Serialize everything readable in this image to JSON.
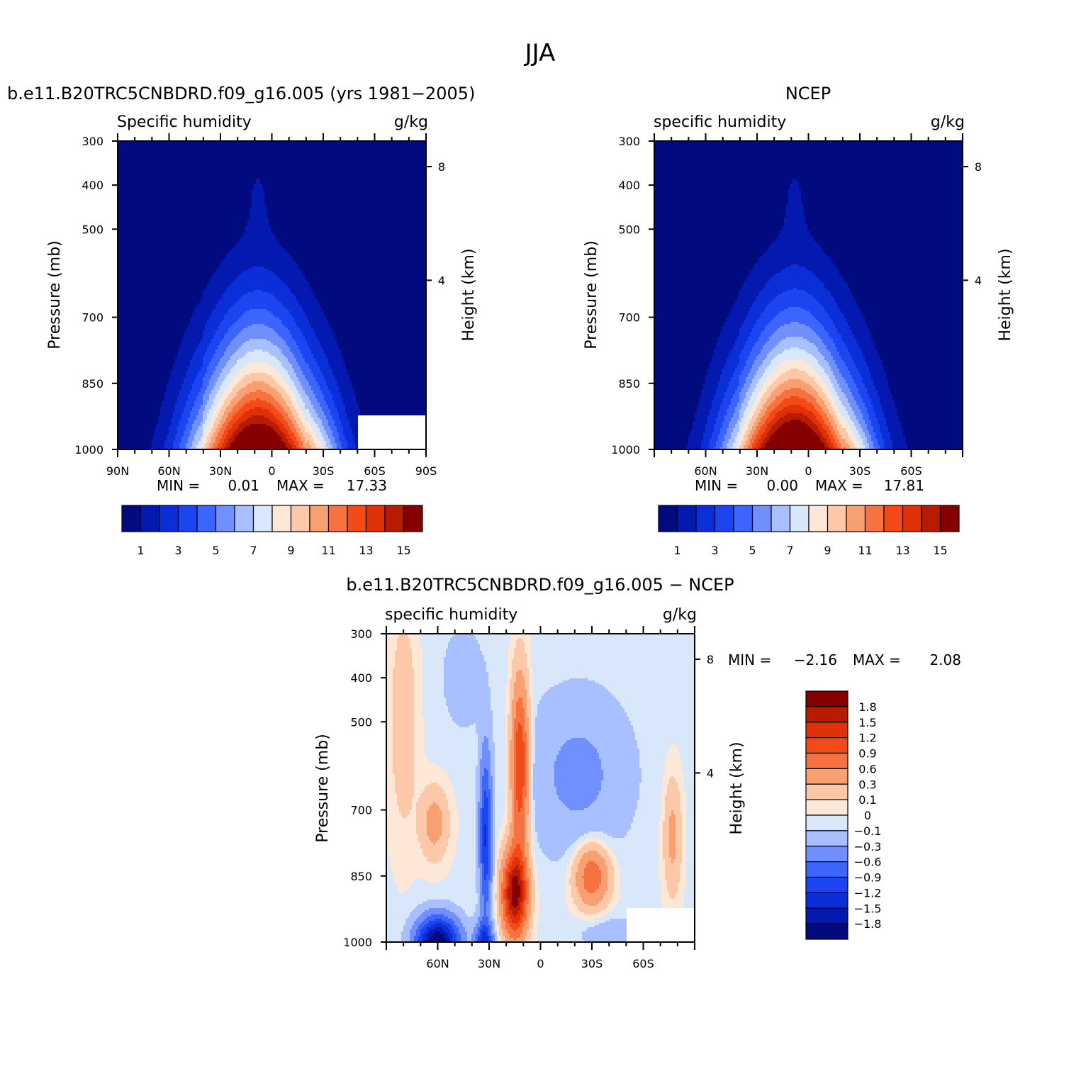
{
  "figure_title": "JJA",
  "panels": [
    {
      "id": "model",
      "title": "b.e11.B20TRC5CNBDRD.f09_g16.005 (yrs 1981-2005)",
      "variable_label": "Specific humidity",
      "units_label": "g/kg",
      "ylabel": "Pressure (mb)",
      "y2label": "Height (km)",
      "stats": {
        "min_label": "MIN =",
        "min": "0.01",
        "max_label": "MAX =",
        "max": "17.33"
      }
    },
    {
      "id": "obs",
      "title": "NCEP",
      "variable_label": "specific humidity",
      "units_label": "g/kg",
      "ylabel": "Pressure (mb)",
      "y2label": "Height (km)",
      "stats": {
        "min_label": "MIN =",
        "min": "0.00",
        "max_label": "MAX =",
        "max": "17.81"
      }
    },
    {
      "id": "diff",
      "title": "b.e11.B20TRC5CNBDRD.f09_g16.005 - NCEP",
      "variable_label": "specific humidity",
      "units_label": "g/kg",
      "ylabel": "Pressure (mb)",
      "y2label": "Height (km)",
      "stats": {
        "min_label": "MIN =",
        "min": "-2.16",
        "max_label": "MAX =",
        "max": "2.08"
      }
    }
  ],
  "chart_data": [
    {
      "type": "heatmap",
      "title": "b.e11.B20TRC5CNBDRD.f09_g16.005 (yrs 1981-2005)",
      "variable": "Specific humidity",
      "units": "g/kg",
      "xlabel": "Latitude",
      "ylabel": "Pressure (mb)",
      "y2label": "Height (km)",
      "x_ticks": [
        "90N",
        "60N",
        "30N",
        "0",
        "30S",
        "60S",
        "90S"
      ],
      "x_tick_values": [
        90,
        60,
        30,
        0,
        -30,
        -60,
        -90
      ],
      "xlim": [
        90,
        -90
      ],
      "y_ticks": [
        "300",
        "400",
        "500",
        "700",
        "850",
        "1000"
      ],
      "y_tick_values": [
        300,
        400,
        500,
        700,
        850,
        1000
      ],
      "ylim": [
        300,
        1000
      ],
      "y2_ticks": [
        "8",
        "4"
      ],
      "y2_tick_pressures": [
        358,
        616
      ],
      "min": 0.01,
      "max": 17.33,
      "colorbar_labels": [
        "1",
        "3",
        "5",
        "7",
        "9",
        "11",
        "13",
        "15"
      ],
      "contour_levels": [
        0,
        1,
        2,
        3,
        4,
        5,
        6,
        7,
        8,
        9,
        10,
        11,
        12,
        13,
        14,
        15,
        16
      ],
      "peak": {
        "lat": 8,
        "pressure": 1000,
        "value": 17.33
      },
      "missing_region": {
        "lat": [
          -50,
          -90
        ],
        "pressure": [
          925,
          1000
        ]
      },
      "boundary_contours": [
        {
          "level": 1,
          "profile_lat": [
            90,
            60,
            40,
            30,
            15,
            8,
            0,
            -15,
            -30,
            -45,
            -60,
            -70,
            -80,
            -85
          ],
          "profile_pressure": [
            575,
            515,
            445,
            425,
            420,
            360,
            420,
            455,
            505,
            615,
            680,
            755,
            845,
            925
          ]
        }
      ]
    },
    {
      "type": "heatmap",
      "title": "NCEP",
      "variable": "specific humidity",
      "units": "g/kg",
      "xlabel": "Latitude",
      "ylabel": "Pressure (mb)",
      "y2label": "Height (km)",
      "x_ticks": [
        "60N",
        "30N",
        "0",
        "30S",
        "60S"
      ],
      "x_tick_values": [
        60,
        30,
        0,
        -30,
        -60
      ],
      "xlim": [
        90,
        -90
      ],
      "y_ticks": [
        "300",
        "400",
        "500",
        "700",
        "850",
        "1000"
      ],
      "y_tick_values": [
        300,
        400,
        500,
        700,
        850,
        1000
      ],
      "ylim": [
        300,
        1000
      ],
      "y2_ticks": [
        "8",
        "4"
      ],
      "y2_tick_pressures": [
        358,
        616
      ],
      "min": 0.0,
      "max": 17.81,
      "colorbar_labels": [
        "1",
        "3",
        "5",
        "7",
        "9",
        "11",
        "13",
        "15"
      ],
      "contour_levels": [
        0,
        1,
        2,
        3,
        4,
        5,
        6,
        7,
        8,
        9,
        10,
        11,
        12,
        13,
        14,
        15,
        16
      ],
      "peak": {
        "lat": 8,
        "pressure": 1000,
        "value": 17.81
      }
    },
    {
      "type": "heatmap",
      "title": "b.e11.B20TRC5CNBDRD.f09_g16.005 - NCEP",
      "variable": "specific humidity",
      "units": "g/kg",
      "xlabel": "Latitude",
      "ylabel": "Pressure (mb)",
      "y2label": "Height (km)",
      "x_ticks": [
        "60N",
        "30N",
        "0",
        "30S",
        "60S"
      ],
      "x_tick_values": [
        60,
        30,
        0,
        -30,
        -60
      ],
      "xlim": [
        90,
        -90
      ],
      "y_ticks": [
        "300",
        "400",
        "500",
        "700",
        "850",
        "1000"
      ],
      "y_tick_values": [
        300,
        400,
        500,
        700,
        850,
        1000
      ],
      "ylim": [
        300,
        1000
      ],
      "y2_ticks": [
        "8",
        "4"
      ],
      "y2_tick_pressures": [
        358,
        616
      ],
      "min": -2.16,
      "max": 2.08,
      "colorbar_labels": [
        "1.8",
        "1.5",
        "1.2",
        "0.9",
        "0.6",
        "0.3",
        "0.1",
        "0",
        "−0.1",
        "−0.3",
        "−0.6",
        "−0.9",
        "−1.2",
        "−1.5",
        "−1.8"
      ],
      "features": [
        {
          "name": "positive core",
          "lat": 15,
          "pressure": 870,
          "value": 2.08
        },
        {
          "name": "negative column",
          "lat": 32,
          "pressure": 750,
          "value": -1.2
        },
        {
          "name": "negative surface NH",
          "lat": 60,
          "pressure": 980,
          "value": -2.16
        },
        {
          "name": "positive SH lobe",
          "lat": -30,
          "pressure": 850,
          "value": 0.9
        }
      ],
      "missing_region": {
        "lat": [
          -50,
          -90
        ],
        "pressure": [
          925,
          1000
        ]
      }
    }
  ],
  "colors": {
    "abs_palette": [
      "#020a80",
      "#0419b0",
      "#0a2ed8",
      "#1c44f0",
      "#3c64ff",
      "#7090ff",
      "#a8c0ff",
      "#d8e8fa",
      "#fde8d8",
      "#fcc8a8",
      "#f8a070",
      "#f67240",
      "#f44a18",
      "#e03008",
      "#b81c00",
      "#860000"
    ],
    "diff_palette": [
      "#860000",
      "#b81c00",
      "#e03008",
      "#f44a18",
      "#f67240",
      "#f8a070",
      "#fcc8a8",
      "#fde8d8",
      "#d8e8fa",
      "#a8c0ff",
      "#7090ff",
      "#3c64ff",
      "#1c44f0",
      "#0a2ed8",
      "#0419b0",
      "#020a80"
    ]
  }
}
